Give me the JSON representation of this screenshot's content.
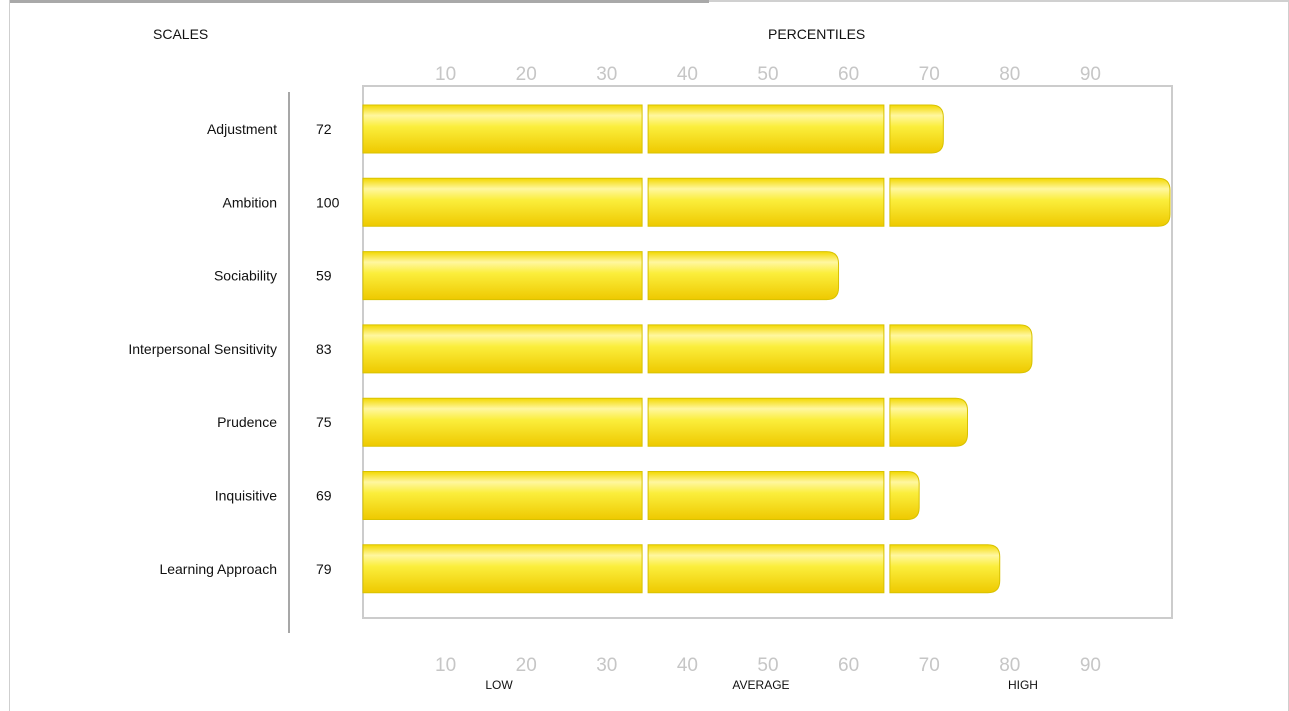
{
  "header": {
    "scales_label": "SCALES",
    "percentiles_label": "PERCENTILES"
  },
  "bands": [
    "LOW",
    "AVERAGE",
    "HIGH"
  ],
  "colors": {
    "bar_fill": "#f5e018",
    "bar_highlight": "#fff8a8",
    "bar_stroke": "#d8c200",
    "tick_label": "#c6c6c6",
    "plot_border": "#cccccc"
  },
  "chart_data": {
    "type": "bar",
    "orientation": "horizontal",
    "categories": [
      "Adjustment",
      "Ambition",
      "Sociability",
      "Interpersonal Sensitivity",
      "Prudence",
      "Inquisitive",
      "Learning Approach"
    ],
    "values": [
      72,
      100,
      59,
      83,
      75,
      69,
      79
    ],
    "value_labels": [
      "72",
      "100",
      "59",
      "83",
      "75",
      "69",
      "79"
    ],
    "xlim": [
      0,
      100
    ],
    "ticks": [
      10,
      20,
      30,
      40,
      50,
      60,
      70,
      80,
      90
    ],
    "tick_labels": [
      "10",
      "20",
      "30",
      "40",
      "50",
      "60",
      "70",
      "80",
      "90"
    ],
    "band_boundaries": [
      35,
      65
    ],
    "grid": false,
    "legend": "none"
  }
}
